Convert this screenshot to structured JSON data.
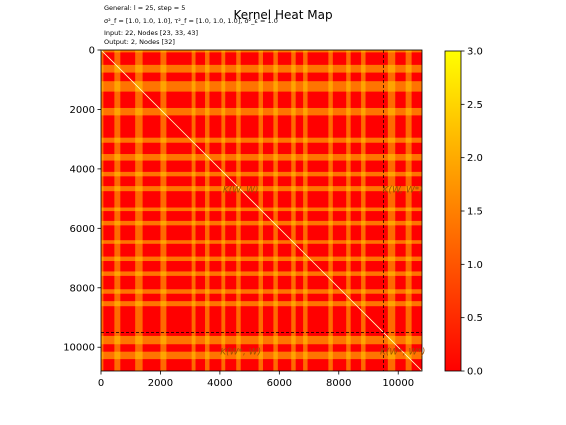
{
  "chart_data": {
    "type": "heatmap",
    "title": "Kernel Heat Map",
    "info_lines": [
      "General: l = 25, step = 5",
      "σ²_f = [1.0, 1.0, 1.0], τ²_f = [1.0, 1.0, 1.0], σ²_ε = 1.0",
      "Input: 22, Nodes [23, 33, 43]",
      "Output: 2, Nodes [32]"
    ],
    "x_range": [
      0,
      10800
    ],
    "y_range": [
      0,
      10800
    ],
    "x_ticks": [
      0,
      2000,
      4000,
      6000,
      8000,
      10000
    ],
    "y_ticks": [
      0,
      2000,
      4000,
      6000,
      8000,
      10000
    ],
    "partition_at": 9500,
    "block_labels": [
      {
        "text": "K(W, W)",
        "x": 4700,
        "y": 4700
      },
      {
        "text": "K(W, W*)",
        "x": 10150,
        "y": 4700
      },
      {
        "text": "K(W*, W)",
        "x": 4700,
        "y": 10150
      },
      {
        "text": "K(W*, W*)",
        "x": 10150,
        "y": 10150
      }
    ],
    "colorbar": {
      "range": [
        0.0,
        3.0
      ],
      "ticks": [
        "0.0",
        "0.5",
        "1.0",
        "1.5",
        "2.0",
        "2.5",
        "3.0"
      ],
      "colormap": [
        "#ff0000",
        "#ff8000",
        "#ffff00"
      ]
    },
    "stripe_bands_y": [
      [
        0,
        80
      ],
      [
        500,
        760
      ],
      [
        1050,
        1400
      ],
      [
        1950,
        2200
      ],
      [
        2950,
        3120
      ],
      [
        3500,
        3720
      ],
      [
        4100,
        4250
      ],
      [
        4580,
        4750
      ],
      [
        5300,
        5420
      ],
      [
        5750,
        5900
      ],
      [
        6400,
        6520
      ],
      [
        6950,
        7100
      ],
      [
        7450,
        7600
      ],
      [
        8050,
        8200
      ],
      [
        8450,
        8620
      ],
      [
        9620,
        9900
      ],
      [
        10150,
        10400
      ]
    ],
    "stripe_bands_x": [
      [
        0,
        80
      ],
      [
        450,
        650
      ],
      [
        1150,
        1400
      ],
      [
        2000,
        2200
      ],
      [
        3050,
        3180
      ],
      [
        3500,
        3650
      ],
      [
        4050,
        4180
      ],
      [
        4550,
        4700
      ],
      [
        5300,
        5450
      ],
      [
        5800,
        5950
      ],
      [
        6400,
        6550
      ],
      [
        6800,
        6950
      ],
      [
        7650,
        7800
      ],
      [
        8250,
        8400
      ],
      [
        8750,
        8900
      ],
      [
        9650,
        9900
      ],
      [
        10250,
        10450
      ]
    ]
  }
}
